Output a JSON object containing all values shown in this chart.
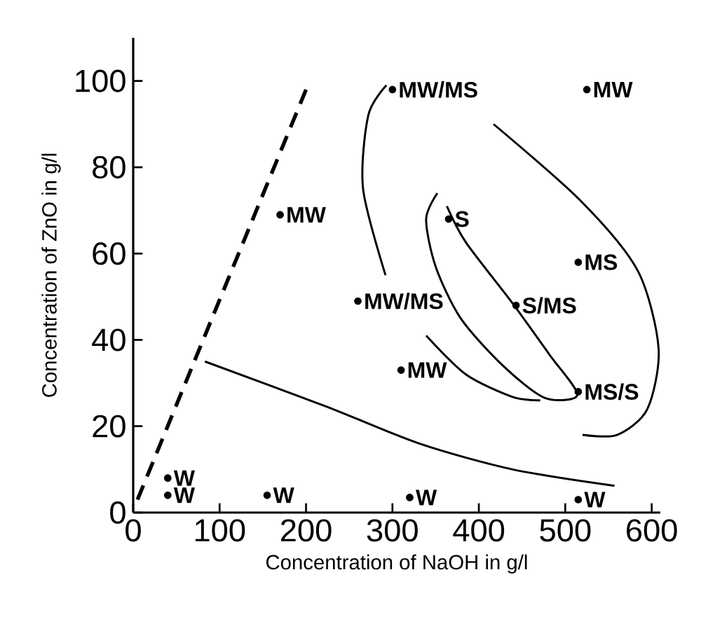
{
  "chart_data": {
    "type": "line",
    "xlabel": "Concentration of NaOH in g/l",
    "ylabel": "Concentration of ZnO in g/l",
    "xlim": [
      0,
      610
    ],
    "ylim": [
      0,
      110
    ],
    "xticks": [
      0,
      100,
      200,
      300,
      400,
      500,
      600
    ],
    "yticks": [
      0,
      20,
      40,
      60,
      80,
      100
    ],
    "series": [
      {
        "type": "scatter",
        "marker": "circle",
        "color": "#000000",
        "x": [
          40,
          40,
          155,
          320,
          515,
          170,
          300,
          525,
          365,
          515,
          260,
          443,
          310,
          515
        ],
        "values": [
          8,
          4,
          4,
          3.5,
          3,
          69,
          98,
          98,
          68,
          58,
          49,
          48,
          33,
          28
        ]
      },
      {
        "line_style": "dashed",
        "color": "#000000",
        "x": [
          5,
          200
        ],
        "values": [
          3,
          98
        ]
      },
      {
        "line_style": "solid",
        "color": "#000000",
        "x": [
          83,
          223,
          331,
          439,
          557
        ],
        "values": [
          35,
          24.6,
          16,
          10,
          6.2
        ]
      },
      {
        "line_style": "solid",
        "color": "#000000",
        "x": [
          292,
          266,
          272,
          293,
          null,
          417,
          519,
          584,
          608,
          595,
          560,
          520
        ],
        "values": [
          55,
          75,
          92,
          99,
          null,
          90,
          72,
          56,
          38,
          24,
          18,
          18
        ]
      },
      {
        "line_style": "solid",
        "color": "#000000",
        "x": [
          352,
          339,
          350,
          379,
          428,
          476,
          514,
          482,
          439,
          385,
          363
        ],
        "values": [
          74,
          68,
          57,
          45,
          34,
          26.6,
          27.3,
          36.5,
          48.5,
          62.6,
          71
        ]
      },
      {
        "line_style": "solid",
        "color": "#000000",
        "x": [
          339,
          385,
          439,
          471
        ],
        "values": [
          41,
          32,
          26.8,
          26
        ]
      }
    ],
    "annotations": [
      {
        "text": "W",
        "x": 40,
        "y": 8
      },
      {
        "text": "W",
        "x": 40,
        "y": 4
      },
      {
        "text": "W",
        "x": 155,
        "y": 4
      },
      {
        "text": "W",
        "x": 320,
        "y": 3.5
      },
      {
        "text": "W",
        "x": 515,
        "y": 3
      },
      {
        "text": "MW",
        "x": 170,
        "y": 69
      },
      {
        "text": "MW/MS",
        "x": 300,
        "y": 98
      },
      {
        "text": "MW",
        "x": 525,
        "y": 98
      },
      {
        "text": "S",
        "x": 365,
        "y": 68
      },
      {
        "text": "MS",
        "x": 515,
        "y": 58
      },
      {
        "text": "MW/MS",
        "x": 260,
        "y": 49
      },
      {
        "text": "S/MS",
        "x": 443,
        "y": 48
      },
      {
        "text": "MW",
        "x": 310,
        "y": 33
      },
      {
        "text": "MS/S",
        "x": 515,
        "y": 28
      }
    ]
  }
}
